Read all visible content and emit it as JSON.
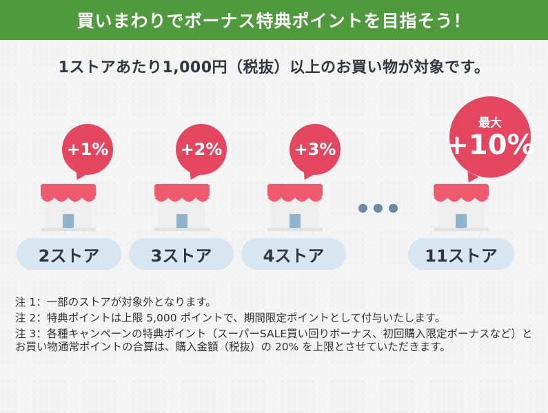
{
  "banner": {
    "title": "買いまわりでボーナス特典ポイントを目指そう！"
  },
  "subtitle": "1ストアあたり1,000円（税抜）以上のお買い物が対象です。",
  "tiers": [
    {
      "bonus": "+1%",
      "stores": "2ストア"
    },
    {
      "bonus": "+2%",
      "stores": "3ストア"
    },
    {
      "bonus": "+3%",
      "stores": "4ストア"
    },
    {
      "bonus": "+10%",
      "bonus_prefix": "最大",
      "stores": "11ストア"
    }
  ],
  "notes": [
    "注 1：一部のストアが対象外となります。",
    "注 2：特典ポイントは上限 5,000 ポイントで、期間限定ポイントとして付与いたします。",
    "注 3：各種キャンペーンの特典ポイント（スーパーSALE買い回りボーナス、初回購入限定ボーナスなど）とお買い物通常ポイントの合算は、購入金額（税抜）の 20% を上限とさせていただきます。"
  ],
  "colors": {
    "banner": "#4e9a3c",
    "bubble": "#e5465f",
    "awning": "#ef5a6e",
    "pill": "#d7e6f0",
    "dots": "#6c8aa8"
  },
  "icons": [
    "store-icon",
    "ellipsis-icon"
  ]
}
